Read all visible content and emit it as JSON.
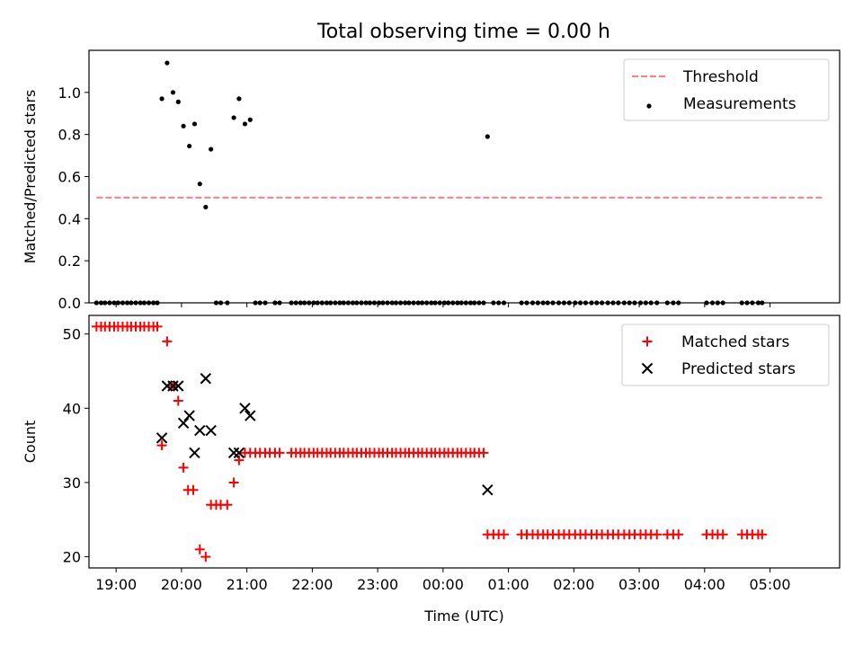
{
  "title": "Total observing time = 0.00 h",
  "chart_data": [
    {
      "type": "scatter",
      "panel": "top",
      "ylabel": "Matched/Predicted stars",
      "xlim": [
        -0.3,
        10.95
      ],
      "ylim": [
        0,
        1.2
      ],
      "yticks": [
        0.0,
        0.2,
        0.4,
        0.6,
        0.8,
        1.0
      ],
      "ytick_labels": [
        "0.0",
        "0.2",
        "0.4",
        "0.6",
        "0.8",
        "1.0"
      ],
      "legend": {
        "placement": "top-right",
        "entries": [
          {
            "label": "Threshold",
            "style": "dashed-line",
            "color": "#ff7f7f"
          },
          {
            "label": "Measurements",
            "style": "dot",
            "color": "#000000"
          }
        ]
      },
      "threshold": {
        "value": 0.5,
        "x_range": [
          -0.3,
          10.8
        ]
      },
      "measurements": [
        [
          -0.3,
          0
        ],
        [
          -0.23,
          0
        ],
        [
          -0.17,
          0
        ],
        [
          -0.1,
          0
        ],
        [
          -0.03,
          0
        ],
        [
          0.03,
          0
        ],
        [
          0.1,
          0
        ],
        [
          0.17,
          0
        ],
        [
          0.23,
          0
        ],
        [
          0.3,
          0
        ],
        [
          0.37,
          0
        ],
        [
          0.43,
          0
        ],
        [
          0.5,
          0
        ],
        [
          0.57,
          0
        ],
        [
          0.63,
          0
        ],
        [
          0.7,
          0.97
        ],
        [
          0.78,
          1.14
        ],
        [
          0.87,
          1.0
        ],
        [
          0.95,
          0.955
        ],
        [
          1.03,
          0.84
        ],
        [
          1.12,
          0.745
        ],
        [
          1.2,
          0.85
        ],
        [
          1.28,
          0.565
        ],
        [
          1.37,
          0.455
        ],
        [
          1.45,
          0.73
        ],
        [
          1.53,
          0
        ],
        [
          1.6,
          0
        ],
        [
          1.7,
          0
        ],
        [
          1.8,
          0.88
        ],
        [
          1.88,
          0.97
        ],
        [
          1.97,
          0.85
        ],
        [
          2.05,
          0.87
        ],
        [
          2.13,
          0
        ],
        [
          2.2,
          0
        ],
        [
          2.28,
          0
        ],
        [
          2.43,
          0
        ],
        [
          2.5,
          0
        ],
        [
          2.68,
          0
        ],
        [
          2.75,
          0
        ],
        [
          2.82,
          0
        ],
        [
          2.88,
          0
        ],
        [
          2.95,
          0
        ],
        [
          3.02,
          0
        ],
        [
          3.08,
          0
        ],
        [
          3.15,
          0
        ],
        [
          3.22,
          0
        ],
        [
          3.28,
          0
        ],
        [
          3.35,
          0
        ],
        [
          3.42,
          0
        ],
        [
          3.48,
          0
        ],
        [
          3.55,
          0
        ],
        [
          3.62,
          0
        ],
        [
          3.68,
          0
        ],
        [
          3.75,
          0
        ],
        [
          3.82,
          0
        ],
        [
          3.88,
          0
        ],
        [
          3.95,
          0
        ],
        [
          4.02,
          0
        ],
        [
          4.08,
          0
        ],
        [
          4.15,
          0
        ],
        [
          4.22,
          0
        ],
        [
          4.28,
          0
        ],
        [
          4.35,
          0
        ],
        [
          4.42,
          0
        ],
        [
          4.48,
          0
        ],
        [
          4.55,
          0
        ],
        [
          4.62,
          0
        ],
        [
          4.68,
          0
        ],
        [
          4.75,
          0
        ],
        [
          4.82,
          0
        ],
        [
          4.88,
          0
        ],
        [
          4.95,
          0
        ],
        [
          5.02,
          0
        ],
        [
          5.08,
          0
        ],
        [
          5.15,
          0
        ],
        [
          5.22,
          0
        ],
        [
          5.28,
          0
        ],
        [
          5.35,
          0
        ],
        [
          5.42,
          0
        ],
        [
          5.48,
          0
        ],
        [
          5.55,
          0
        ],
        [
          5.62,
          0
        ],
        [
          5.68,
          0.79
        ],
        [
          5.77,
          0
        ],
        [
          5.85,
          0
        ],
        [
          5.93,
          0
        ],
        [
          6.2,
          0
        ],
        [
          6.28,
          0
        ],
        [
          6.37,
          0
        ],
        [
          6.45,
          0
        ],
        [
          6.53,
          0
        ],
        [
          6.6,
          0
        ],
        [
          6.68,
          0
        ],
        [
          6.77,
          0
        ],
        [
          6.85,
          0
        ],
        [
          6.93,
          0
        ],
        [
          7.02,
          0
        ],
        [
          7.1,
          0
        ],
        [
          7.18,
          0
        ],
        [
          7.27,
          0
        ],
        [
          7.35,
          0
        ],
        [
          7.43,
          0
        ],
        [
          7.52,
          0
        ],
        [
          7.6,
          0
        ],
        [
          7.68,
          0
        ],
        [
          7.77,
          0
        ],
        [
          7.85,
          0
        ],
        [
          7.93,
          0
        ],
        [
          8.02,
          0
        ],
        [
          8.1,
          0
        ],
        [
          8.18,
          0
        ],
        [
          8.27,
          0
        ],
        [
          8.43,
          0
        ],
        [
          8.52,
          0
        ],
        [
          8.6,
          0
        ],
        [
          9.03,
          0
        ],
        [
          9.12,
          0
        ],
        [
          9.2,
          0
        ],
        [
          9.28,
          0
        ],
        [
          9.57,
          0
        ],
        [
          9.65,
          0
        ],
        [
          9.73,
          0
        ],
        [
          9.82,
          0
        ],
        [
          9.88,
          0
        ]
      ]
    },
    {
      "type": "scatter",
      "panel": "bottom",
      "xlabel": "Time (UTC)",
      "ylabel": "Count",
      "xlim": [
        -0.3,
        10.95
      ],
      "ylim": [
        18.5,
        52.5
      ],
      "yticks": [
        20,
        30,
        40,
        50
      ],
      "ytick_labels": [
        "20",
        "30",
        "40",
        "50"
      ],
      "xticks": [
        0,
        1,
        2,
        3,
        4,
        5,
        6,
        7,
        8,
        9,
        10
      ],
      "xtick_labels": [
        "19:00",
        "20:00",
        "21:00",
        "22:00",
        "23:00",
        "00:00",
        "01:00",
        "02:00",
        "03:00",
        "04:00",
        "05:00"
      ],
      "legend": {
        "placement": "top-right",
        "entries": [
          {
            "label": "Matched stars",
            "style": "plus",
            "color": "#ff0000"
          },
          {
            "label": "Predicted stars",
            "style": "cross",
            "color": "#000000"
          }
        ]
      },
      "series": [
        {
          "name": "Matched stars",
          "marker": "plus",
          "color": "#ff0000",
          "points": [
            [
              -0.3,
              51
            ],
            [
              -0.23,
              51
            ],
            [
              -0.17,
              51
            ],
            [
              -0.1,
              51
            ],
            [
              -0.03,
              51
            ],
            [
              0.03,
              51
            ],
            [
              0.1,
              51
            ],
            [
              0.17,
              51
            ],
            [
              0.23,
              51
            ],
            [
              0.3,
              51
            ],
            [
              0.37,
              51
            ],
            [
              0.43,
              51
            ],
            [
              0.5,
              51
            ],
            [
              0.57,
              51
            ],
            [
              0.63,
              51
            ],
            [
              0.7,
              35
            ],
            [
              0.78,
              49
            ],
            [
              0.87,
              43
            ],
            [
              0.95,
              41
            ],
            [
              1.03,
              32
            ],
            [
              1.1,
              29
            ],
            [
              1.18,
              29
            ],
            [
              1.28,
              21
            ],
            [
              1.37,
              20
            ],
            [
              1.45,
              27
            ],
            [
              1.53,
              27
            ],
            [
              1.6,
              27
            ],
            [
              1.7,
              27
            ],
            [
              1.8,
              30
            ],
            [
              1.88,
              33
            ],
            [
              1.97,
              34
            ],
            [
              2.05,
              34
            ],
            [
              2.13,
              34
            ],
            [
              2.2,
              34
            ],
            [
              2.28,
              34
            ],
            [
              2.35,
              34
            ],
            [
              2.43,
              34
            ],
            [
              2.5,
              34
            ],
            [
              2.68,
              34
            ],
            [
              2.75,
              34
            ],
            [
              2.82,
              34
            ],
            [
              2.88,
              34
            ],
            [
              2.95,
              34
            ],
            [
              3.02,
              34
            ],
            [
              3.08,
              34
            ],
            [
              3.15,
              34
            ],
            [
              3.22,
              34
            ],
            [
              3.28,
              34
            ],
            [
              3.35,
              34
            ],
            [
              3.42,
              34
            ],
            [
              3.48,
              34
            ],
            [
              3.55,
              34
            ],
            [
              3.62,
              34
            ],
            [
              3.68,
              34
            ],
            [
              3.75,
              34
            ],
            [
              3.82,
              34
            ],
            [
              3.88,
              34
            ],
            [
              3.95,
              34
            ],
            [
              4.02,
              34
            ],
            [
              4.08,
              34
            ],
            [
              4.15,
              34
            ],
            [
              4.22,
              34
            ],
            [
              4.28,
              34
            ],
            [
              4.35,
              34
            ],
            [
              4.42,
              34
            ],
            [
              4.48,
              34
            ],
            [
              4.55,
              34
            ],
            [
              4.62,
              34
            ],
            [
              4.68,
              34
            ],
            [
              4.75,
              34
            ],
            [
              4.82,
              34
            ],
            [
              4.88,
              34
            ],
            [
              4.95,
              34
            ],
            [
              5.02,
              34
            ],
            [
              5.08,
              34
            ],
            [
              5.15,
              34
            ],
            [
              5.22,
              34
            ],
            [
              5.28,
              34
            ],
            [
              5.35,
              34
            ],
            [
              5.42,
              34
            ],
            [
              5.48,
              34
            ],
            [
              5.55,
              34
            ],
            [
              5.62,
              34
            ],
            [
              5.68,
              23
            ],
            [
              5.77,
              23
            ],
            [
              5.85,
              23
            ],
            [
              5.93,
              23
            ],
            [
              6.2,
              23
            ],
            [
              6.28,
              23
            ],
            [
              6.37,
              23
            ],
            [
              6.45,
              23
            ],
            [
              6.53,
              23
            ],
            [
              6.6,
              23
            ],
            [
              6.68,
              23
            ],
            [
              6.77,
              23
            ],
            [
              6.85,
              23
            ],
            [
              6.93,
              23
            ],
            [
              7.02,
              23
            ],
            [
              7.1,
              23
            ],
            [
              7.18,
              23
            ],
            [
              7.27,
              23
            ],
            [
              7.35,
              23
            ],
            [
              7.43,
              23
            ],
            [
              7.52,
              23
            ],
            [
              7.6,
              23
            ],
            [
              7.68,
              23
            ],
            [
              7.77,
              23
            ],
            [
              7.85,
              23
            ],
            [
              7.93,
              23
            ],
            [
              8.02,
              23
            ],
            [
              8.1,
              23
            ],
            [
              8.18,
              23
            ],
            [
              8.27,
              23
            ],
            [
              8.43,
              23
            ],
            [
              8.52,
              23
            ],
            [
              8.6,
              23
            ],
            [
              9.03,
              23
            ],
            [
              9.12,
              23
            ],
            [
              9.2,
              23
            ],
            [
              9.28,
              23
            ],
            [
              9.57,
              23
            ],
            [
              9.65,
              23
            ],
            [
              9.73,
              23
            ],
            [
              9.82,
              23
            ],
            [
              9.88,
              23
            ]
          ]
        },
        {
          "name": "Predicted stars",
          "marker": "cross",
          "color": "#000000",
          "points": [
            [
              0.7,
              36
            ],
            [
              0.78,
              43
            ],
            [
              0.87,
              43
            ],
            [
              0.95,
              43
            ],
            [
              1.03,
              38
            ],
            [
              1.12,
              39
            ],
            [
              1.2,
              34
            ],
            [
              1.28,
              37
            ],
            [
              1.37,
              44
            ],
            [
              1.45,
              37
            ],
            [
              1.8,
              34
            ],
            [
              1.88,
              34
            ],
            [
              1.97,
              40
            ],
            [
              2.05,
              39
            ],
            [
              5.68,
              29
            ]
          ]
        }
      ]
    }
  ]
}
